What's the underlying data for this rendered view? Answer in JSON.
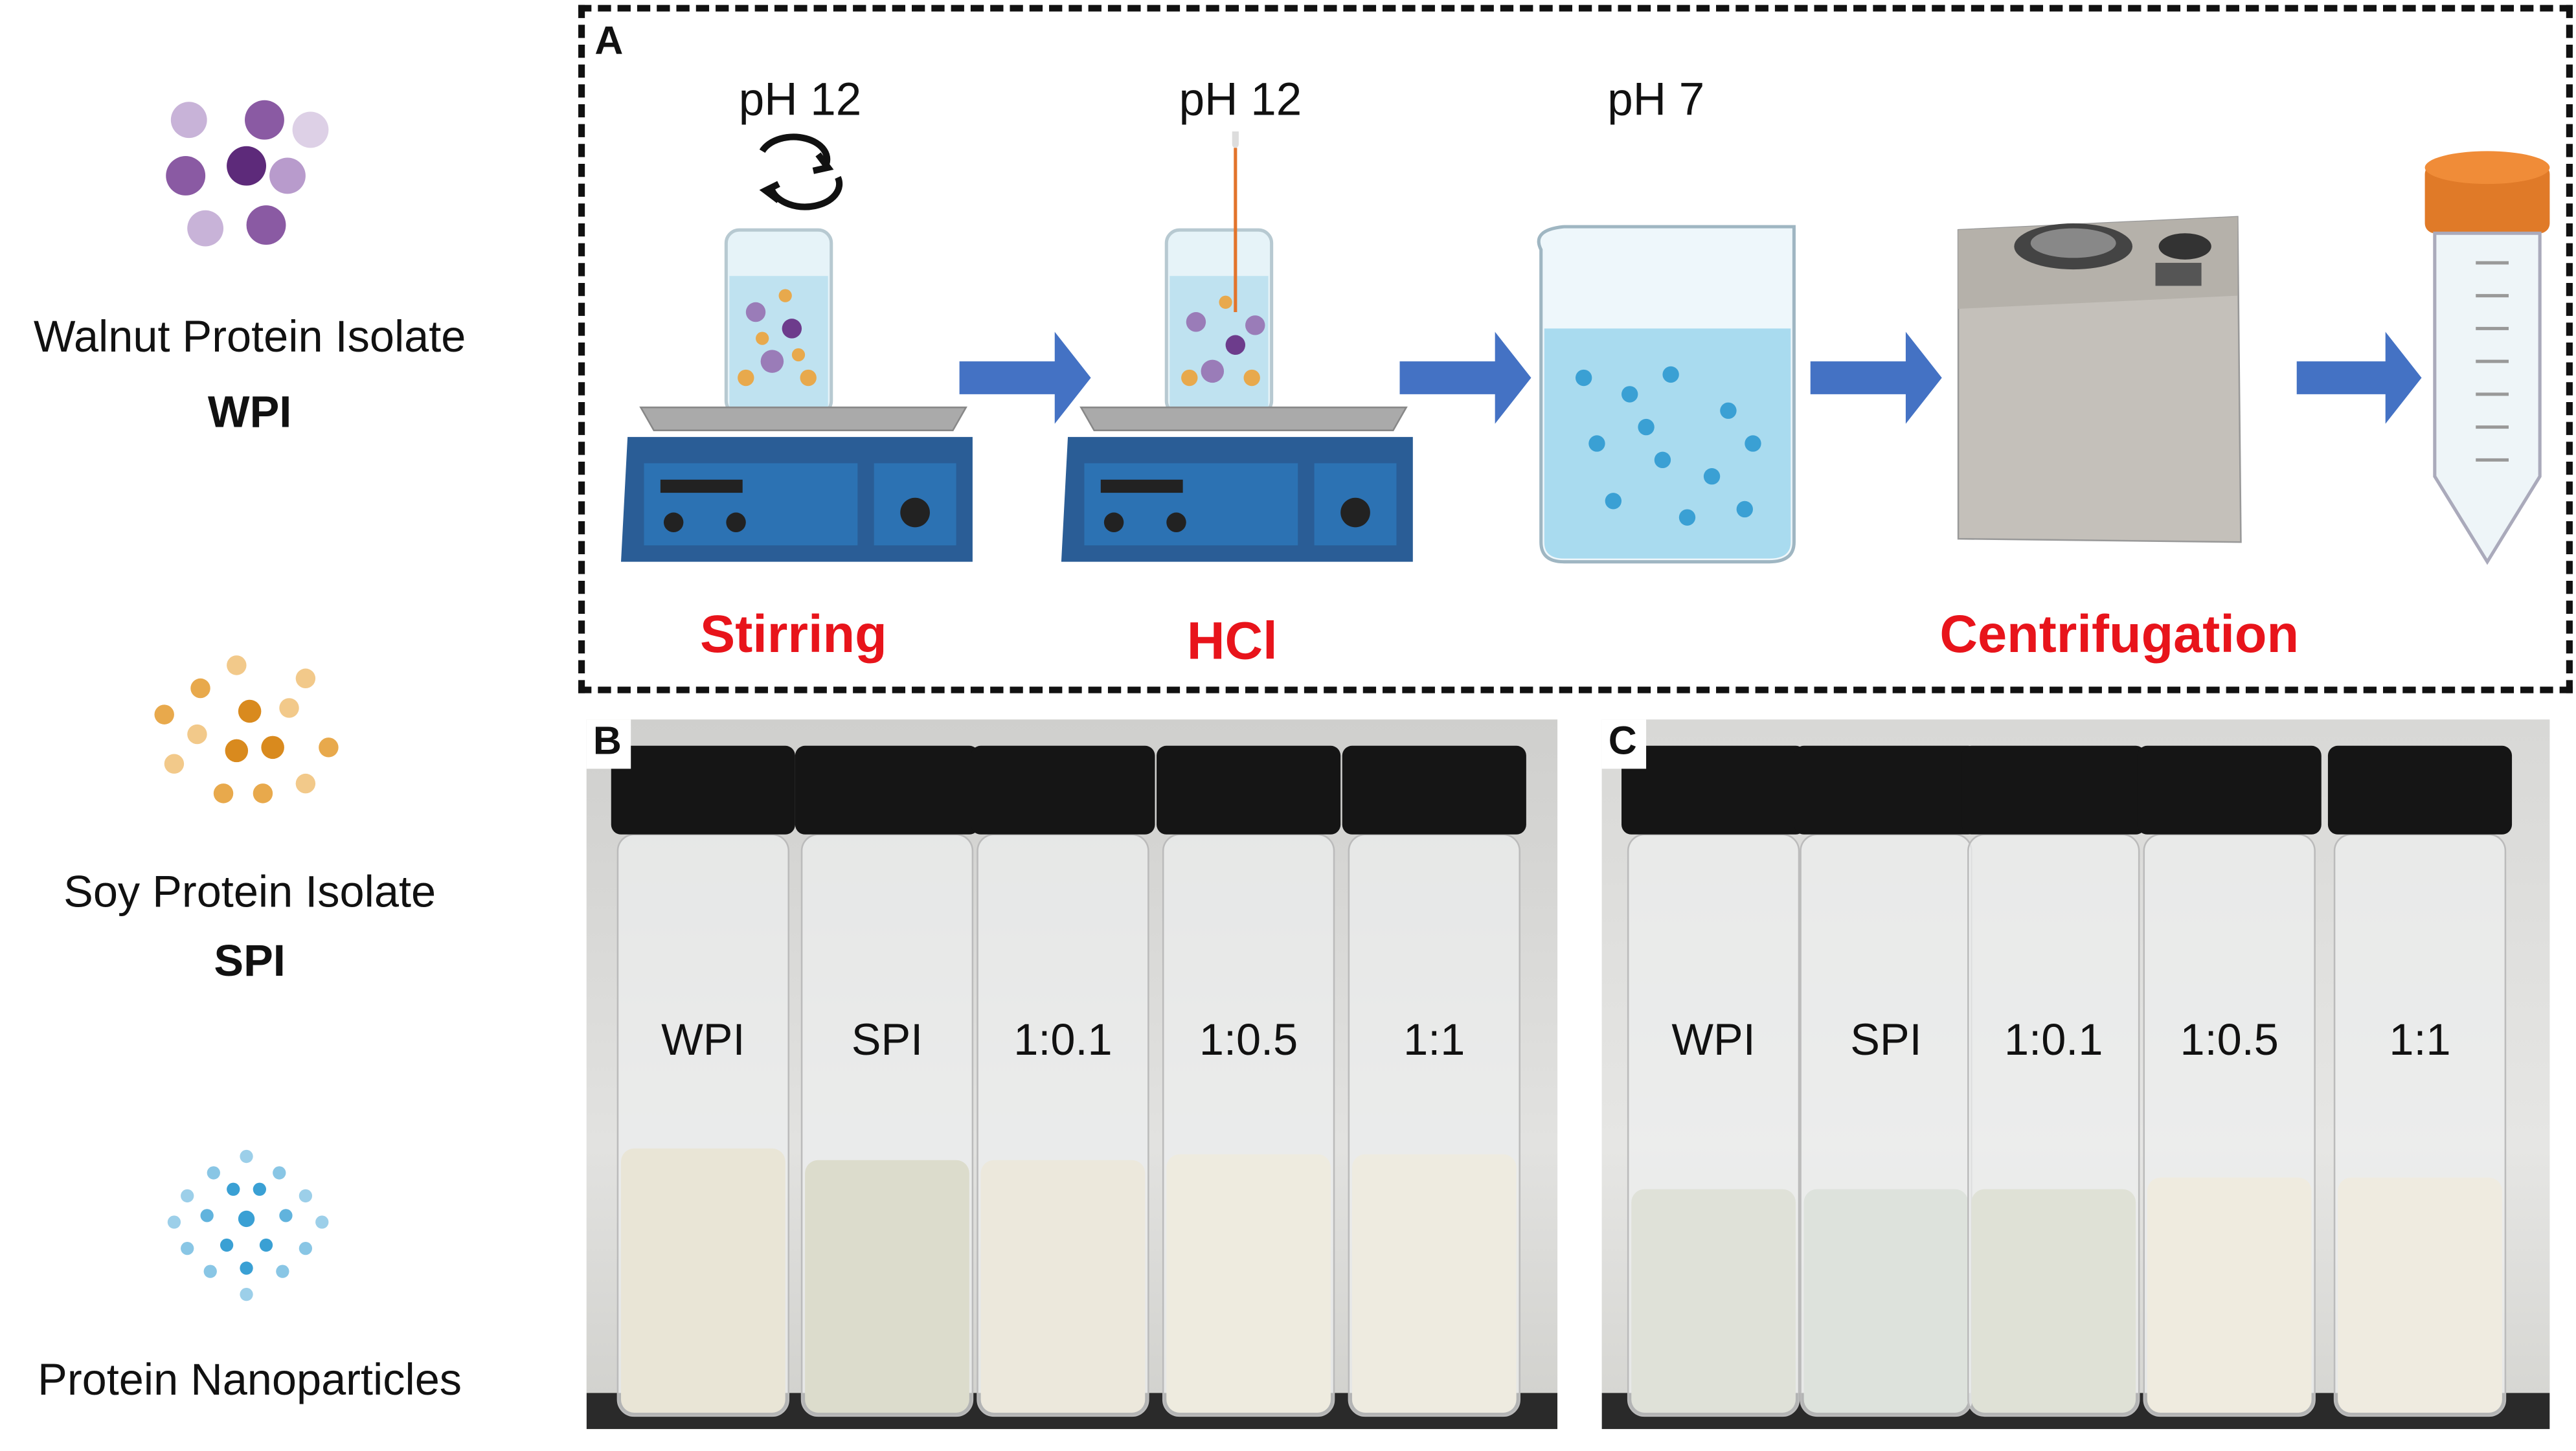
{
  "left_legend": [
    {
      "name": "Walnut Protein Isolate",
      "abbr": "WPI",
      "icon": "purple-particles-icon"
    },
    {
      "name": "Soy Protein Isolate",
      "abbr": "SPI",
      "icon": "orange-particles-icon"
    },
    {
      "name": "Protein Nanoparticles",
      "abbr": "",
      "icon": "blue-nanoparticles-icon"
    }
  ],
  "panel_a": {
    "label": "A",
    "steps": [
      {
        "ph": "pH 12",
        "caption": "Stirring",
        "icon": "stirrer-beaker-icon"
      },
      {
        "ph": "pH 12",
        "caption": "HCl",
        "icon": "stirrer-pipette-icon"
      },
      {
        "ph": "pH 7",
        "caption": "",
        "icon": "beaker-nanoparticles-icon"
      },
      {
        "ph": "",
        "caption": "Centrifugation",
        "icon": "centrifuge-icon"
      },
      {
        "ph": "",
        "caption": "",
        "icon": "centrifuge-tube-icon"
      }
    ],
    "arrow_color": "#4472c4",
    "caption_color": "#e8141b"
  },
  "panel_b": {
    "label": "B",
    "vials": [
      {
        "label": "WPI",
        "liquid": "#e9e5d6",
        "level": 0.46
      },
      {
        "label": "SPI",
        "liquid": "#dcdccc",
        "level": 0.44
      },
      {
        "label": "1:0.1",
        "liquid": "#ece8dc",
        "level": 0.44
      },
      {
        "label": "1:0.5",
        "liquid": "#eeebdf",
        "level": 0.45
      },
      {
        "label": "1:1",
        "liquid": "#eeebe0",
        "level": 0.45
      }
    ]
  },
  "panel_c": {
    "label": "C",
    "vials": [
      {
        "label": "WPI",
        "liquid": "#dfe1d8",
        "level": 0.39
      },
      {
        "label": "SPI",
        "liquid": "#dde2dc",
        "level": 0.39
      },
      {
        "label": "1:0.1",
        "liquid": "#dfe1d6",
        "level": 0.39
      },
      {
        "label": "1:0.5",
        "liquid": "#efebdf",
        "level": 0.41
      },
      {
        "label": "1:1",
        "liquid": "#efebe0",
        "level": 0.41
      }
    ]
  }
}
